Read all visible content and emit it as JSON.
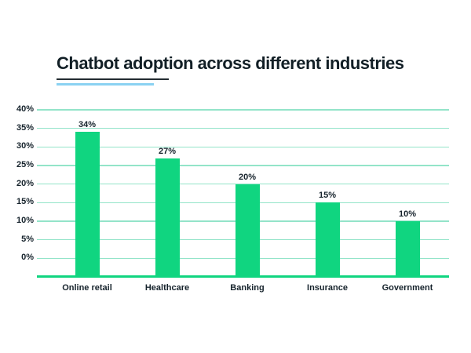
{
  "title": {
    "text": "Chatbot adoption across different industries"
  },
  "chart_data": {
    "type": "bar",
    "title": "Chatbot adoption across different industries",
    "categories": [
      "Online retail",
      "Healthcare",
      "Banking",
      "Insurance",
      "Government"
    ],
    "values": [
      34,
      27,
      20,
      15,
      10
    ],
    "value_labels": [
      "34%",
      "27%",
      "20%",
      "15%",
      "10%"
    ],
    "ytick_labels": [
      "40%",
      "35%",
      "30%",
      "25%",
      "20%",
      "15%",
      "10%",
      "5%",
      "0%"
    ],
    "ytick_values": [
      40,
      35,
      30,
      25,
      20,
      15,
      10,
      5,
      0
    ],
    "ylim": [
      0,
      40
    ],
    "xlabel": "",
    "ylabel": "",
    "grid": true,
    "legend": false,
    "bars_extend_below_zero_by_pct": 5,
    "colors": {
      "bar": "#10d580",
      "gridline": "#93e4c9",
      "baseline": "#10d580",
      "text": "#16232c",
      "title": "#121f26",
      "underline_dark": "#232c31",
      "underline_blue": "#8ad2f2"
    }
  }
}
